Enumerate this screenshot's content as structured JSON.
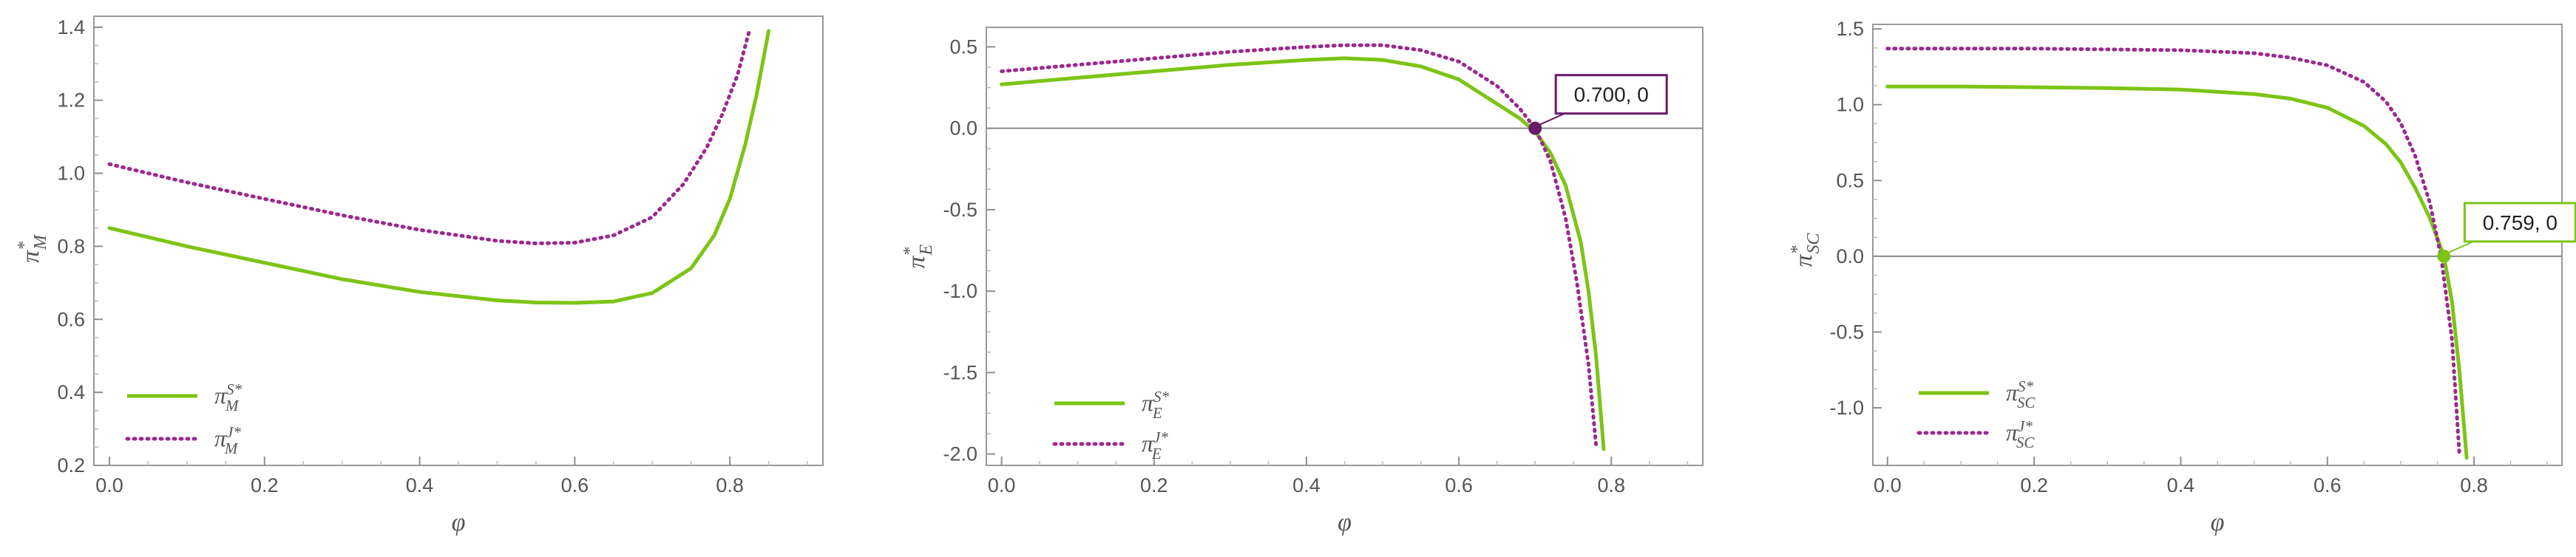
{
  "colors": {
    "solid": "#7dc416",
    "dotted": "#9b2a8f",
    "point_purple": "#6a1a6a",
    "point_green": "#7dc416"
  },
  "chart_data": [
    {
      "type": "line",
      "xlabel": "φ",
      "ylabel": {
        "base": "π",
        "sup": "*",
        "sub": "M"
      },
      "xlim": [
        -0.02,
        0.92
      ],
      "ylim": [
        0.2,
        1.43
      ],
      "xticks": [
        "0.0",
        "0.2",
        "0.4",
        "0.6",
        "0.8"
      ],
      "yticks": [
        "0.2",
        "0.4",
        "0.6",
        "0.8",
        "1.0",
        "1.2",
        "1.4"
      ],
      "legend": [
        {
          "style": "solid",
          "base": "π",
          "sup": "S*",
          "sub": "M"
        },
        {
          "style": "dotted",
          "base": "π",
          "sup": "J*",
          "sub": "M"
        }
      ],
      "series": [
        {
          "style": "solid",
          "x": [
            0.0,
            0.1,
            0.2,
            0.3,
            0.4,
            0.5,
            0.55,
            0.6,
            0.65,
            0.7,
            0.75,
            0.78,
            0.8,
            0.82,
            0.835,
            0.85
          ],
          "y": [
            0.85,
            0.8,
            0.755,
            0.71,
            0.675,
            0.652,
            0.646,
            0.645,
            0.649,
            0.672,
            0.74,
            0.83,
            0.93,
            1.08,
            1.22,
            1.39
          ]
        },
        {
          "style": "dotted",
          "x": [
            0.0,
            0.1,
            0.2,
            0.3,
            0.4,
            0.5,
            0.55,
            0.6,
            0.65,
            0.7,
            0.74,
            0.77,
            0.79,
            0.81,
            0.825
          ],
          "y": [
            1.025,
            0.975,
            0.93,
            0.885,
            0.845,
            0.815,
            0.808,
            0.81,
            0.83,
            0.88,
            0.97,
            1.07,
            1.16,
            1.27,
            1.39
          ]
        }
      ]
    },
    {
      "type": "line",
      "xlabel": "φ",
      "ylabel": {
        "base": "π",
        "sup": "*",
        "sub": "E"
      },
      "xlim": [
        -0.02,
        0.92
      ],
      "ylim": [
        -2.07,
        0.62
      ],
      "xticks": [
        "0.0",
        "0.2",
        "0.4",
        "0.6",
        "0.8"
      ],
      "yticks": [
        "-2.0",
        "-1.5",
        "-1.0",
        "-0.5",
        "0.0",
        "0.5"
      ],
      "zero_line": true,
      "legend": [
        {
          "style": "solid",
          "base": "π",
          "sup": "S*",
          "sub": "E"
        },
        {
          "style": "dotted",
          "base": "π",
          "sup": "J*",
          "sub": "E"
        }
      ],
      "series": [
        {
          "style": "solid",
          "x": [
            0.0,
            0.1,
            0.2,
            0.3,
            0.4,
            0.45,
            0.5,
            0.55,
            0.6,
            0.65,
            0.68,
            0.7,
            0.72,
            0.74,
            0.76,
            0.77,
            0.78,
            0.79
          ],
          "y": [
            0.27,
            0.31,
            0.35,
            0.39,
            0.42,
            0.43,
            0.42,
            0.38,
            0.3,
            0.15,
            0.06,
            -0.02,
            -0.15,
            -0.35,
            -0.7,
            -1.0,
            -1.4,
            -1.97
          ]
        },
        {
          "style": "dotted",
          "x": [
            0.0,
            0.1,
            0.2,
            0.3,
            0.4,
            0.45,
            0.5,
            0.55,
            0.6,
            0.65,
            0.68,
            0.7,
            0.72,
            0.74,
            0.755,
            0.77,
            0.78
          ],
          "y": [
            0.35,
            0.39,
            0.43,
            0.47,
            0.5,
            0.51,
            0.51,
            0.48,
            0.41,
            0.26,
            0.12,
            0.0,
            -0.2,
            -0.55,
            -0.95,
            -1.45,
            -1.95
          ]
        }
      ],
      "callout": {
        "text": "0.700, 0",
        "x": 0.7,
        "y": 0.0,
        "color": "#6a1a6a"
      }
    },
    {
      "type": "line",
      "xlabel": "φ",
      "ylabel": {
        "base": "π",
        "sup": "*",
        "sub": "SC"
      },
      "xlim": [
        -0.02,
        0.92
      ],
      "ylim": [
        -1.38,
        1.53
      ],
      "xticks": [
        "0.0",
        "0.2",
        "0.4",
        "0.6",
        "0.8"
      ],
      "yticks": [
        "-1.0",
        "-0.5",
        "0.0",
        "0.5",
        "1.0",
        "1.5"
      ],
      "zero_line": true,
      "legend": [
        {
          "style": "solid",
          "base": "π",
          "sup": "S*",
          "sub": "SC"
        },
        {
          "style": "dotted",
          "base": "π",
          "sup": "J*",
          "sub": "SC"
        }
      ],
      "series": [
        {
          "style": "solid",
          "x": [
            0.0,
            0.1,
            0.2,
            0.3,
            0.4,
            0.5,
            0.55,
            0.6,
            0.65,
            0.68,
            0.7,
            0.72,
            0.74,
            0.759,
            0.77,
            0.78,
            0.79
          ],
          "y": [
            1.12,
            1.12,
            1.115,
            1.11,
            1.1,
            1.07,
            1.04,
            0.98,
            0.86,
            0.74,
            0.62,
            0.45,
            0.25,
            0.0,
            -0.3,
            -0.75,
            -1.33
          ]
        },
        {
          "style": "dotted",
          "x": [
            0.0,
            0.1,
            0.2,
            0.3,
            0.4,
            0.5,
            0.55,
            0.6,
            0.65,
            0.68,
            0.7,
            0.72,
            0.74,
            0.755,
            0.77,
            0.78
          ],
          "y": [
            1.37,
            1.37,
            1.37,
            1.365,
            1.36,
            1.34,
            1.31,
            1.26,
            1.15,
            1.02,
            0.88,
            0.66,
            0.35,
            0.0,
            -0.55,
            -1.3
          ]
        }
      ],
      "callout": {
        "text": "0.759, 0",
        "x": 0.759,
        "y": 0.0,
        "color": "#7dc416"
      }
    }
  ]
}
